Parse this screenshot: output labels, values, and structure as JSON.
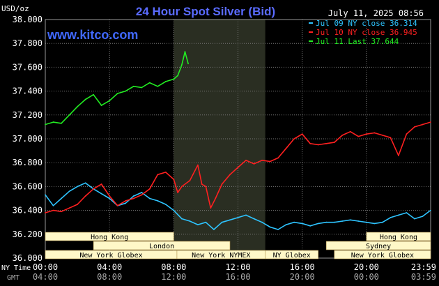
{
  "chart_data": {
    "type": "line",
    "title": "24 Hour Spot Silver (Bid)",
    "timestamp": "July 11, 2025 08:56",
    "website": "www.kitco.com",
    "y_unit_label": "USD/oz",
    "ylim": [
      36.0,
      38.0
    ],
    "y_ticks": [
      "38.000",
      "37.800",
      "37.600",
      "37.400",
      "37.200",
      "37.000",
      "36.800",
      "36.600",
      "36.400",
      "36.200",
      "36.000"
    ],
    "xlim": [
      0,
      24
    ],
    "x_row_labels": {
      "ny": "NY Time",
      "gmt": "GMT"
    },
    "x_ticks_ny": [
      "00:00",
      "04:00",
      "08:00",
      "12:00",
      "16:00",
      "20:00",
      "23:59"
    ],
    "x_ticks_gmt": [
      "04:00",
      "08:00",
      "12:00",
      "16:00",
      "20:00",
      "00:00",
      "03:59"
    ],
    "grid": true,
    "legend_position": "top-right",
    "colors": {
      "background": "#000000",
      "grid": "#777777",
      "axis_text": "#ffffff",
      "title": "#5a6bff",
      "website": "#4169ff",
      "highlight": "#2a2e22",
      "session_fill": "#fff8c8"
    },
    "series": [
      {
        "name": "Jul 09 NY close 36.314",
        "color": "#2ec4ff",
        "x": [
          0,
          0.5,
          1,
          1.5,
          2,
          2.5,
          3,
          3.5,
          4,
          4.5,
          5,
          5.5,
          6,
          6.5,
          7,
          7.5,
          8,
          8.5,
          9,
          9.5,
          10,
          10.5,
          11,
          11.5,
          12,
          12.5,
          13,
          13.5,
          14,
          14.5,
          15,
          15.5,
          16,
          16.5,
          17,
          17.5,
          18,
          18.5,
          19,
          19.5,
          20,
          20.5,
          21,
          21.5,
          22,
          22.5,
          23,
          23.5,
          23.99
        ],
        "y": [
          36.53,
          36.44,
          36.5,
          36.56,
          36.6,
          36.63,
          36.58,
          36.54,
          36.5,
          36.44,
          36.46,
          36.52,
          36.55,
          36.5,
          36.48,
          36.45,
          36.4,
          36.33,
          36.31,
          36.28,
          36.3,
          36.24,
          36.3,
          36.32,
          36.34,
          36.36,
          36.33,
          36.3,
          36.26,
          36.24,
          36.28,
          36.3,
          36.29,
          36.27,
          36.29,
          36.3,
          36.3,
          36.31,
          36.32,
          36.31,
          36.3,
          36.29,
          36.3,
          36.34,
          36.36,
          36.38,
          36.33,
          36.35,
          36.4
        ]
      },
      {
        "name": "Jul 10 NY close 36.945",
        "color": "#ff2020",
        "x": [
          0,
          0.5,
          1,
          1.5,
          2,
          2.5,
          3,
          3.5,
          4,
          4.5,
          5,
          5.5,
          6,
          6.5,
          7,
          7.5,
          8,
          8.25,
          8.5,
          9,
          9.5,
          9.75,
          10,
          10.3,
          10.6,
          11,
          11.5,
          12,
          12.5,
          13,
          13.5,
          14,
          14.5,
          15,
          15.5,
          16,
          16.5,
          17,
          17.5,
          18,
          18.5,
          19,
          19.5,
          20,
          20.5,
          21,
          21.5,
          22,
          22.5,
          23,
          23.5,
          23.99
        ],
        "y": [
          36.38,
          36.4,
          36.39,
          36.42,
          36.45,
          36.52,
          36.58,
          36.62,
          36.52,
          36.44,
          36.48,
          36.5,
          36.53,
          36.58,
          36.7,
          36.72,
          36.66,
          36.55,
          36.6,
          36.65,
          36.78,
          36.62,
          36.6,
          36.42,
          36.5,
          36.62,
          36.7,
          36.76,
          36.82,
          36.79,
          36.82,
          36.81,
          36.84,
          36.92,
          37.0,
          37.04,
          36.96,
          36.95,
          36.96,
          36.97,
          37.03,
          37.06,
          37.02,
          37.04,
          37.05,
          37.03,
          37.01,
          36.86,
          37.04,
          37.1,
          37.12,
          37.14
        ]
      },
      {
        "name": "Jul 11 Last 37.644",
        "color": "#22ee22",
        "x": [
          0,
          0.5,
          1,
          1.5,
          2,
          2.5,
          3,
          3.5,
          4,
          4.5,
          5,
          5.5,
          6,
          6.5,
          7,
          7.5,
          8,
          8.25,
          8.5,
          8.7,
          8.9
        ],
        "y": [
          37.12,
          37.14,
          37.13,
          37.2,
          37.27,
          37.33,
          37.37,
          37.28,
          37.32,
          37.38,
          37.4,
          37.44,
          37.43,
          37.47,
          37.44,
          37.48,
          37.5,
          37.53,
          37.62,
          37.73,
          37.63
        ]
      }
    ],
    "highlight_band": [
      8,
      13.7
    ],
    "sessions": {
      "rows": [
        [
          {
            "label": "Hong Kong",
            "start": 0,
            "end": 8
          },
          {
            "label": "Hong Kong",
            "start": 20,
            "end": 24
          }
        ],
        [
          {
            "label": "London",
            "start": 3,
            "end": 11.5
          },
          {
            "label": "Sydney",
            "start": 17.5,
            "end": 24
          }
        ],
        [
          {
            "label": "New York Globex",
            "start": 0,
            "end": 8.2
          },
          {
            "label": "New York NYMEX",
            "start": 8.2,
            "end": 13.7
          },
          {
            "label": "NY Globex",
            "start": 13.7,
            "end": 17
          },
          {
            "label": "New York Globex",
            "start": 18,
            "end": 24
          }
        ]
      ]
    }
  }
}
